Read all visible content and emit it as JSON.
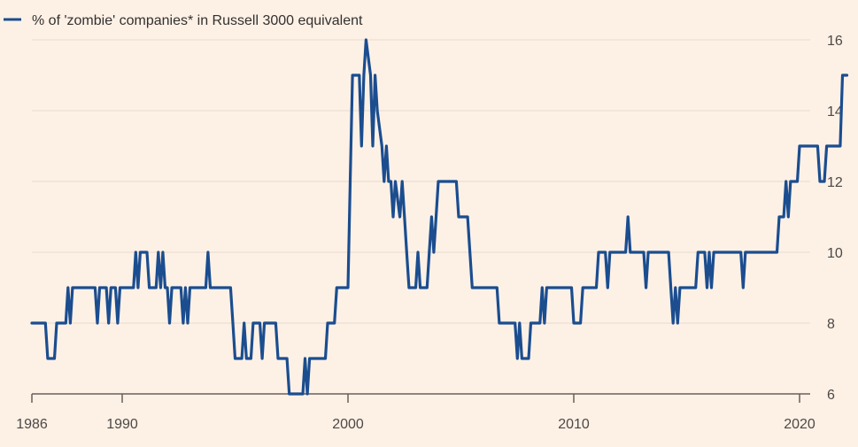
{
  "chart_data": {
    "type": "line",
    "title": "",
    "xlabel": "",
    "ylabel": "",
    "xlim": [
      1986,
      2021
    ],
    "ylim": [
      6,
      16
    ],
    "x_ticks": [
      1986,
      1990,
      2000,
      2010,
      2020
    ],
    "x_tick_labels": [
      "1986",
      "1990",
      "2000",
      "2010",
      "2020"
    ],
    "y_ticks": [
      6,
      8,
      10,
      12,
      14,
      16
    ],
    "y_tick_labels": [
      "6",
      "8",
      "10",
      "12",
      "14",
      "16"
    ],
    "grid": "horizontal",
    "legend_position": "top-left",
    "colors": {
      "line": "#1b4d8f",
      "grid": "#e6d9cc",
      "axis": "#66605c",
      "background": "#fdf1e6"
    },
    "series": [
      {
        "name": "% of 'zombie' companies* in Russell 3000 equivalent",
        "points": [
          [
            1986.0,
            8
          ],
          [
            1986.6,
            8
          ],
          [
            1986.7,
            7
          ],
          [
            1987.0,
            7
          ],
          [
            1987.1,
            8
          ],
          [
            1987.5,
            8
          ],
          [
            1987.6,
            9
          ],
          [
            1987.7,
            8
          ],
          [
            1987.8,
            9
          ],
          [
            1988.8,
            9
          ],
          [
            1988.9,
            8
          ],
          [
            1989.0,
            9
          ],
          [
            1989.3,
            9
          ],
          [
            1989.4,
            8
          ],
          [
            1989.5,
            9
          ],
          [
            1989.7,
            9
          ],
          [
            1989.8,
            8
          ],
          [
            1989.9,
            9
          ],
          [
            1990.5,
            9
          ],
          [
            1990.6,
            10
          ],
          [
            1990.7,
            9
          ],
          [
            1990.8,
            10
          ],
          [
            1991.1,
            10
          ],
          [
            1991.2,
            9
          ],
          [
            1991.5,
            9
          ],
          [
            1991.6,
            10
          ],
          [
            1991.7,
            9
          ],
          [
            1991.8,
            10
          ],
          [
            1991.9,
            9
          ],
          [
            1992.0,
            9
          ],
          [
            1992.1,
            8
          ],
          [
            1992.2,
            9
          ],
          [
            1992.6,
            9
          ],
          [
            1992.7,
            8
          ],
          [
            1992.8,
            9
          ],
          [
            1992.9,
            8
          ],
          [
            1993.0,
            9
          ],
          [
            1993.7,
            9
          ],
          [
            1993.8,
            10
          ],
          [
            1993.9,
            9
          ],
          [
            1994.8,
            9
          ],
          [
            1994.9,
            8
          ],
          [
            1995.0,
            7
          ],
          [
            1995.3,
            7
          ],
          [
            1995.4,
            8
          ],
          [
            1995.5,
            7
          ],
          [
            1995.7,
            7
          ],
          [
            1995.8,
            8
          ],
          [
            1996.1,
            8
          ],
          [
            1996.2,
            7
          ],
          [
            1996.3,
            8
          ],
          [
            1996.8,
            8
          ],
          [
            1996.9,
            7
          ],
          [
            1997.3,
            7
          ],
          [
            1997.4,
            6
          ],
          [
            1998.0,
            6
          ],
          [
            1998.1,
            7
          ],
          [
            1998.2,
            6
          ],
          [
            1998.3,
            7
          ],
          [
            1999.0,
            7
          ],
          [
            1999.1,
            8
          ],
          [
            1999.4,
            8
          ],
          [
            1999.5,
            9
          ],
          [
            2000.0,
            9
          ],
          [
            2000.1,
            12
          ],
          [
            2000.2,
            15
          ],
          [
            2000.5,
            15
          ],
          [
            2000.6,
            13
          ],
          [
            2000.7,
            15
          ],
          [
            2000.8,
            16
          ],
          [
            2001.0,
            15
          ],
          [
            2001.1,
            13
          ],
          [
            2001.2,
            15
          ],
          [
            2001.3,
            14
          ],
          [
            2001.5,
            13
          ],
          [
            2001.6,
            12
          ],
          [
            2001.7,
            13
          ],
          [
            2001.8,
            12
          ],
          [
            2001.9,
            12
          ],
          [
            2002.0,
            11
          ],
          [
            2002.1,
            12
          ],
          [
            2002.3,
            11
          ],
          [
            2002.4,
            12
          ],
          [
            2002.5,
            11
          ],
          [
            2002.6,
            10
          ],
          [
            2002.7,
            9
          ],
          [
            2003.0,
            9
          ],
          [
            2003.1,
            10
          ],
          [
            2003.2,
            9
          ],
          [
            2003.5,
            9
          ],
          [
            2003.6,
            10
          ],
          [
            2003.7,
            11
          ],
          [
            2003.8,
            10
          ],
          [
            2003.9,
            11
          ],
          [
            2004.0,
            12
          ],
          [
            2004.8,
            12
          ],
          [
            2004.9,
            11
          ],
          [
            2005.3,
            11
          ],
          [
            2005.4,
            10
          ],
          [
            2005.5,
            9
          ],
          [
            2006.6,
            9
          ],
          [
            2006.7,
            8
          ],
          [
            2007.4,
            8
          ],
          [
            2007.5,
            7
          ],
          [
            2007.6,
            8
          ],
          [
            2007.7,
            7
          ],
          [
            2008.0,
            7
          ],
          [
            2008.1,
            8
          ],
          [
            2008.5,
            8
          ],
          [
            2008.6,
            9
          ],
          [
            2008.7,
            8
          ],
          [
            2008.8,
            9
          ],
          [
            2009.9,
            9
          ],
          [
            2010.0,
            8
          ],
          [
            2010.3,
            8
          ],
          [
            2010.4,
            9
          ],
          [
            2011.0,
            9
          ],
          [
            2011.1,
            10
          ],
          [
            2011.4,
            10
          ],
          [
            2011.5,
            9
          ],
          [
            2011.6,
            10
          ],
          [
            2012.3,
            10
          ],
          [
            2012.4,
            11
          ],
          [
            2012.5,
            10
          ],
          [
            2013.1,
            10
          ],
          [
            2013.2,
            9
          ],
          [
            2013.3,
            10
          ],
          [
            2014.2,
            10
          ],
          [
            2014.3,
            9
          ],
          [
            2014.4,
            8
          ],
          [
            2014.5,
            9
          ],
          [
            2014.6,
            8
          ],
          [
            2014.7,
            9
          ],
          [
            2015.4,
            9
          ],
          [
            2015.5,
            10
          ],
          [
            2015.8,
            10
          ],
          [
            2015.9,
            9
          ],
          [
            2016.0,
            10
          ],
          [
            2016.1,
            9
          ],
          [
            2016.2,
            10
          ],
          [
            2017.4,
            10
          ],
          [
            2017.5,
            9
          ],
          [
            2017.6,
            10
          ],
          [
            2019.0,
            10
          ],
          [
            2019.1,
            11
          ],
          [
            2019.3,
            11
          ],
          [
            2019.4,
            12
          ],
          [
            2019.5,
            11
          ],
          [
            2019.6,
            12
          ],
          [
            2019.8,
            12
          ],
          [
            2019.9,
            12
          ],
          [
            2020.0,
            13
          ],
          [
            2020.8,
            13
          ],
          [
            2020.9,
            12
          ],
          [
            2021.1,
            12
          ],
          [
            2021.2,
            13
          ],
          [
            2021.8,
            13
          ],
          [
            2021.9,
            15
          ],
          [
            2022.1,
            15
          ]
        ]
      }
    ]
  }
}
